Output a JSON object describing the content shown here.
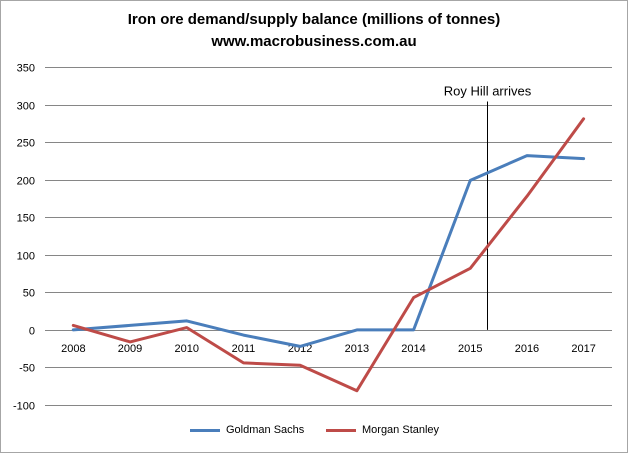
{
  "chart_data": {
    "type": "line",
    "title": "Iron ore demand/supply balance (millions of tonnes)",
    "subtitle": "www.macrobusiness.com.au",
    "categories": [
      "2008",
      "2009",
      "2010",
      "2011",
      "2012",
      "2013",
      "2014",
      "2015",
      "2016",
      "2017"
    ],
    "series": [
      {
        "name": "Goldman Sachs",
        "color": "#4a7ebb",
        "values": [
          0,
          6,
          12,
          -7,
          -22,
          0,
          0,
          199,
          232,
          228
        ]
      },
      {
        "name": "Morgan Stanley",
        "color": "#be4b48",
        "values": [
          6,
          -16,
          3,
          -44,
          -47,
          -81,
          43,
          82,
          178,
          281
        ]
      }
    ],
    "ylim": [
      -100,
      350
    ],
    "yticks": [
      -100,
      -50,
      0,
      50,
      100,
      150,
      200,
      250,
      300,
      350
    ],
    "grid": true,
    "legend_position": "bottom",
    "annotation": {
      "label": "Roy Hill arrives",
      "x": "2015"
    }
  }
}
